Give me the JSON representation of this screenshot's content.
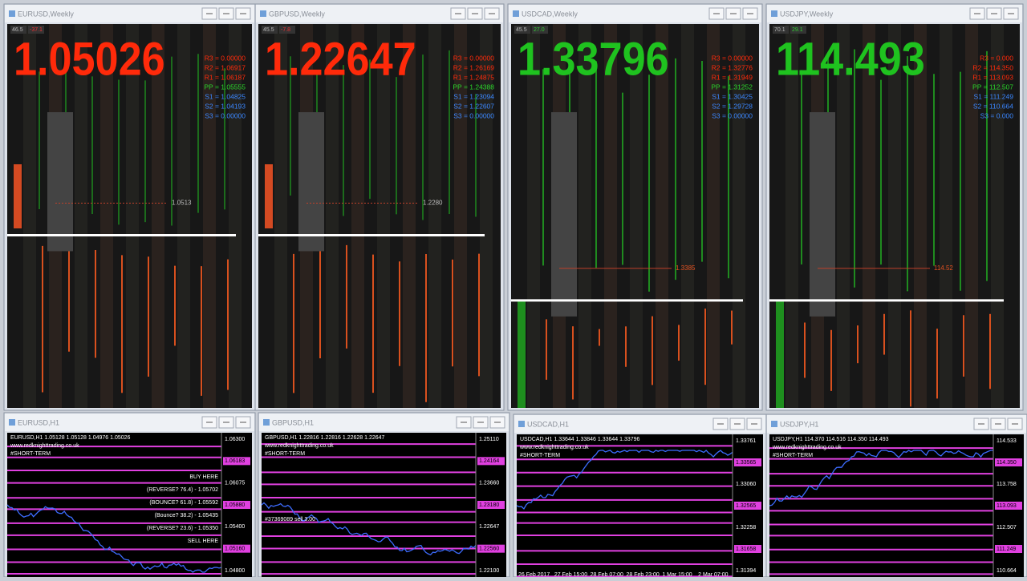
{
  "weekly": [
    {
      "title": "EURUSD,Weekly",
      "price": "1.05026",
      "trend": "down",
      "corner": [
        "46.5",
        "-37.1"
      ],
      "level": "1.0513",
      "pivots": [
        "R3 = 0.00000",
        "R2 = 1.06917",
        "R1 = 1.06187",
        "PP = 1.05555",
        "S1 = 1.04825",
        "S2 = 1.04193",
        "S3 = 0.00000"
      ]
    },
    {
      "title": "GBPUSD,Weekly",
      "price": "1.22647",
      "trend": "down",
      "corner": [
        "45.5",
        "-7.8"
      ],
      "level": "1.2280",
      "pivots": [
        "R3 = 0.00000",
        "R2 = 1.26169",
        "R1 = 1.24875",
        "PP = 1.24388",
        "S1 = 1.23094",
        "S2 = 1.22607",
        "S3 = 0.00000"
      ]
    },
    {
      "title": "USDCAD,Weekly",
      "price": "1.33796",
      "trend": "up",
      "corner": [
        "45.5",
        "27.0"
      ],
      "level": "1.3385",
      "pivots": [
        "R3 = 0.00000",
        "R2 = 1.32776",
        "R1 = 1.31949",
        "PP = 1.31252",
        "S1 = 1.30425",
        "S2 = 1.29728",
        "S3 = 0.00000"
      ]
    },
    {
      "title": "USDJPY,Weekly",
      "price": "114.493",
      "trend": "up",
      "corner": [
        "70.1",
        "29.1"
      ],
      "level": "114.52",
      "pivots": [
        "R3 = 0.000",
        "R2 = 114.350",
        "R1 = 113.093",
        "PP = 112.507",
        "S1 = 111.249",
        "S2 = 110.664",
        "S3 = 0.000"
      ]
    }
  ],
  "hourly": [
    {
      "title": "EURUSD,H1",
      "header": "EURUSD,H1  1.05128 1.05128 1.04976 1.05026",
      "site": "www.redknighttrading.co.uk",
      "tag": "#SHORT-TERM",
      "axis": [
        "1.06300",
        "1.06183",
        "1.06075",
        "1.05880",
        "1.05400",
        "1.05160",
        "1.04800"
      ],
      "notes": [
        "BUY HERE",
        "(REVERSE? 76.4) - 1.05702",
        "(BOUNCE? 61.8) - 1.05592",
        "(Bounce? 38.2) - 1.05435",
        "(REVERSE? 23.6) - 1.05350",
        "SELL HERE"
      ]
    },
    {
      "title": "GBPUSD,H1",
      "header": "GBPUSD,H1  1.22816 1.22816 1.22628 1.22647",
      "site": "www.redknighttrading.co.uk",
      "tag": "#SHORT-TERM",
      "axis": [
        "1.25110",
        "1.24164",
        "1.23660",
        "1.23180",
        "1.22647",
        "1.22560",
        "1.22100"
      ],
      "notes": [
        "#37369089 sell 3.00"
      ]
    },
    {
      "title": "USDCAD,H1",
      "header": "USDCAD,H1  1.33644 1.33846 1.33644 1.33796",
      "site": "www.redknighttrading.co.uk",
      "tag": "#SHORT-TERM",
      "axis": [
        "1.33761",
        "1.33565",
        "1.33060",
        "1.32565",
        "1.32258",
        "1.31658",
        "1.31394"
      ],
      "notes": [],
      "dates": [
        "26 Feb 2017",
        "27 Feb 15:00",
        "28 Feb 07:00",
        "28 Feb 23:00",
        "1 Mar 15:00",
        "2 Mar 07:00"
      ]
    },
    {
      "title": "USDJPY,H1",
      "header": "USDJPY,H1  114.370 114.516 114.350 114.493",
      "site": "www.redknighttrading.co.uk",
      "tag": "#SHORT-TERM",
      "axis": [
        "114.533",
        "114.350",
        "113.758",
        "113.093",
        "112.507",
        "111.249",
        "110.664"
      ],
      "notes": []
    }
  ]
}
